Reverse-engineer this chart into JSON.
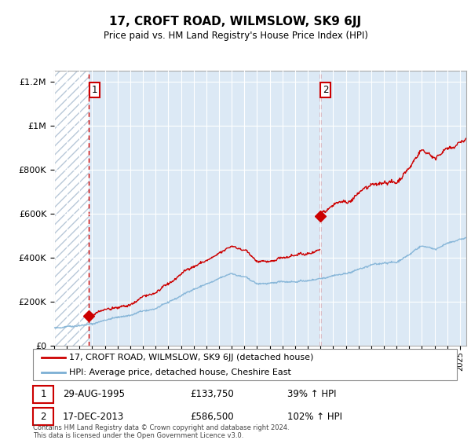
{
  "title": "17, CROFT ROAD, WILMSLOW, SK9 6JJ",
  "subtitle": "Price paid vs. HM Land Registry's House Price Index (HPI)",
  "sale1_date": 1995.75,
  "sale1_price": 133750,
  "sale2_date": 2013.96,
  "sale2_price": 586500,
  "ylim": [
    0,
    1250000
  ],
  "xlim": [
    1993,
    2025.5
  ],
  "legend_line1": "17, CROFT ROAD, WILMSLOW, SK9 6JJ (detached house)",
  "legend_line2": "HPI: Average price, detached house, Cheshire East",
  "footnote": "Contains HM Land Registry data © Crown copyright and database right 2024.\nThis data is licensed under the Open Government Licence v3.0.",
  "property_color": "#cc0000",
  "hpi_color": "#7bafd4",
  "background_color": "#dce9f5",
  "hatch_color": "#b8c8d8",
  "grid_color": "#ffffff",
  "hpi_control_x": [
    1993,
    1994,
    1995,
    1996,
    1997,
    1998,
    1999,
    2000,
    2001,
    2002,
    2003,
    2004,
    2005,
    2006,
    2007,
    2008,
    2009,
    2010,
    2011,
    2012,
    2013,
    2014,
    2015,
    2016,
    2017,
    2018,
    2019,
    2020,
    2021,
    2022,
    2023,
    2024,
    2025.5
  ],
  "hpi_control_y": [
    80000,
    85000,
    90000,
    97000,
    105000,
    115000,
    128000,
    145000,
    162000,
    185000,
    212000,
    245000,
    268000,
    290000,
    310000,
    295000,
    268000,
    272000,
    278000,
    280000,
    285000,
    295000,
    310000,
    328000,
    345000,
    362000,
    370000,
    368000,
    405000,
    440000,
    425000,
    455000,
    490000
  ],
  "noise_seed": 42,
  "noise_scale_hpi": 4000,
  "noise_scale_prop": 8000,
  "n_points": 800
}
